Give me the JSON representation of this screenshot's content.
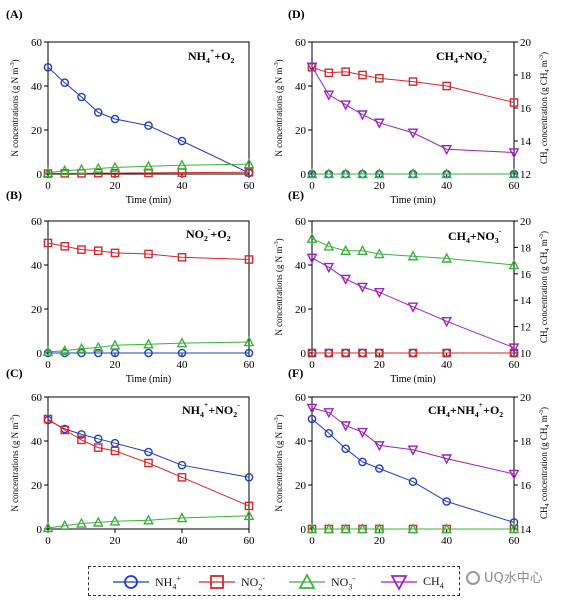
{
  "chart_data": [
    {
      "type": "line",
      "panel_label": "(A)",
      "annotation": {
        "parts": [
          [
            "NH",
            ""
          ],
          [
            "4",
            "sub"
          ],
          [
            "+",
            "sup"
          ],
          [
            "+O",
            ""
          ],
          [
            "2",
            "sub"
          ]
        ]
      },
      "xlabel": "Time (min)",
      "ylabel": "N concentrations (g N m-3)",
      "xlim": [
        0,
        60
      ],
      "ylim": [
        0,
        60
      ],
      "xticks": [
        0,
        20,
        40,
        60
      ],
      "yticks": [
        0,
        20,
        40,
        60
      ],
      "series": [
        {
          "key": "nh4",
          "x": [
            0,
            5,
            10,
            15,
            20,
            30,
            40,
            60
          ],
          "y": [
            48.5,
            41.5,
            35,
            28,
            25,
            22,
            15,
            0.5
          ]
        },
        {
          "key": "no2",
          "x": [
            0,
            5,
            10,
            15,
            20,
            30,
            40,
            60
          ],
          "y": [
            0.2,
            0.3,
            0.3,
            0.4,
            0.4,
            0.5,
            0.6,
            0.8
          ]
        },
        {
          "key": "no3",
          "x": [
            0,
            5,
            10,
            15,
            20,
            30,
            40,
            60
          ],
          "y": [
            0.5,
            1.5,
            2,
            2.5,
            3,
            3.5,
            4,
            4.5
          ]
        }
      ]
    },
    {
      "type": "line",
      "panel_label": "(B)",
      "annotation": {
        "parts": [
          [
            "NO",
            ""
          ],
          [
            "2",
            "sub"
          ],
          [
            "-",
            "sup"
          ],
          [
            "+O",
            ""
          ],
          [
            "2",
            "sub"
          ]
        ]
      },
      "xlabel": "Time (min)",
      "ylabel": "",
      "xlim": [
        0,
        60
      ],
      "ylim": [
        0,
        60
      ],
      "xticks": [
        0,
        20,
        40,
        60
      ],
      "yticks": [
        0,
        20,
        40,
        60
      ],
      "series": [
        {
          "key": "nh4",
          "x": [
            0,
            5,
            10,
            15,
            20,
            30,
            40,
            60
          ],
          "y": [
            0,
            0,
            0,
            0,
            0,
            0,
            0,
            0
          ]
        },
        {
          "key": "no2",
          "x": [
            0,
            5,
            10,
            15,
            20,
            30,
            40,
            60
          ],
          "y": [
            50,
            48.5,
            47,
            46.5,
            45.5,
            45,
            43.5,
            42.5
          ]
        },
        {
          "key": "no3",
          "x": [
            0,
            5,
            10,
            15,
            20,
            30,
            40,
            60
          ],
          "y": [
            0.5,
            1,
            2,
            2.5,
            3.5,
            4,
            4.5,
            5
          ]
        }
      ]
    },
    {
      "type": "line",
      "panel_label": "(C)",
      "annotation": {
        "parts": [
          [
            "NH",
            ""
          ],
          [
            "4",
            "sub"
          ],
          [
            "+",
            "sup"
          ],
          [
            "+NO",
            ""
          ],
          [
            "2",
            "sub"
          ],
          [
            "-",
            "sup"
          ]
        ]
      },
      "xlabel": "",
      "ylabel": "N concentrations (g N m-3)",
      "xlim": [
        0,
        60
      ],
      "ylim": [
        0,
        60
      ],
      "xticks": [
        0,
        20,
        40,
        60
      ],
      "yticks": [
        0,
        20,
        40,
        60
      ],
      "series": [
        {
          "key": "nh4",
          "x": [
            0,
            5,
            10,
            15,
            20,
            30,
            40,
            60
          ],
          "y": [
            49.5,
            45.5,
            43,
            41,
            39,
            35,
            29,
            23.5
          ]
        },
        {
          "key": "no2",
          "x": [
            0,
            5,
            10,
            15,
            20,
            30,
            40,
            60
          ],
          "y": [
            50,
            45,
            40.5,
            37,
            35.5,
            30,
            23.5,
            10.5
          ]
        },
        {
          "key": "no3",
          "x": [
            0,
            5,
            10,
            15,
            20,
            30,
            40,
            60
          ],
          "y": [
            0.5,
            1.5,
            2.5,
            3,
            3.5,
            4,
            5,
            6
          ]
        }
      ]
    },
    {
      "type": "line",
      "panel_label": "(D)",
      "annotation": {
        "parts": [
          [
            "CH",
            ""
          ],
          [
            "4",
            "sub"
          ],
          [
            "+NO",
            ""
          ],
          [
            "2",
            "sub"
          ],
          [
            "-",
            "sup"
          ]
        ]
      },
      "xlabel": "Time (min)",
      "ylabel": "N concentrations (g N m-3)",
      "ylabel_right": "CH4 concentration (g CH4 m-3)",
      "xlim": [
        0,
        60
      ],
      "ylim": [
        0,
        60
      ],
      "ylim_right": [
        12,
        20
      ],
      "xticks": [
        0,
        20,
        40,
        60
      ],
      "yticks": [
        0,
        20,
        40,
        60
      ],
      "yticks_right": [
        12,
        14,
        16,
        18,
        20
      ],
      "series": [
        {
          "key": "nh4",
          "x": [
            0,
            5,
            10,
            15,
            20,
            30,
            40,
            60
          ],
          "y": [
            0,
            0,
            0,
            0,
            0,
            0,
            0,
            0
          ]
        },
        {
          "key": "no2",
          "x": [
            0,
            5,
            10,
            15,
            20,
            30,
            40,
            60
          ],
          "y": [
            48.5,
            46,
            46.5,
            45,
            43.5,
            42,
            40,
            32.5
          ]
        },
        {
          "key": "no3",
          "x": [
            0,
            5,
            10,
            15,
            20,
            30,
            40,
            60
          ],
          "y": [
            0,
            0,
            0,
            0,
            0,
            0,
            0,
            0
          ]
        },
        {
          "key": "ch4",
          "axis": "right",
          "x": [
            0,
            5,
            10,
            15,
            20,
            30,
            40,
            60
          ],
          "y": [
            18.5,
            16.8,
            16.2,
            15.6,
            15.1,
            14.5,
            13.5,
            13.3
          ]
        }
      ]
    },
    {
      "type": "line",
      "panel_label": "(E)",
      "annotation": {
        "parts": [
          [
            "CH",
            ""
          ],
          [
            "4",
            "sub"
          ],
          [
            "+NO",
            ""
          ],
          [
            "3",
            "sub"
          ],
          [
            "-",
            "sup"
          ]
        ]
      },
      "xlabel": "Time (min)",
      "ylabel": "N concentrations (g N m-3)",
      "ylabel_right": "CH4 concentration (g CH4 m-3)",
      "xlim": [
        0,
        60
      ],
      "ylim": [
        0,
        60
      ],
      "ylim_right": [
        10,
        20
      ],
      "xticks": [
        0,
        20,
        40,
        60
      ],
      "yticks": [
        0,
        20,
        40,
        60
      ],
      "yticks_right": [
        10,
        12,
        14,
        16,
        18,
        20
      ],
      "series": [
        {
          "key": "nh4",
          "x": [
            0,
            5,
            10,
            15,
            20,
            30,
            40,
            60
          ],
          "y": [
            0,
            0,
            0,
            0,
            0,
            0,
            0,
            0
          ]
        },
        {
          "key": "no2",
          "x": [
            0,
            5,
            10,
            15,
            20,
            30,
            40,
            60
          ],
          "y": [
            0,
            0,
            0,
            0,
            0,
            0,
            0,
            0
          ]
        },
        {
          "key": "no3",
          "x": [
            0,
            5,
            10,
            15,
            20,
            30,
            40,
            60
          ],
          "y": [
            52,
            48.5,
            46.5,
            46.5,
            45,
            44,
            43,
            40
          ]
        },
        {
          "key": "ch4",
          "axis": "right",
          "x": [
            0,
            5,
            10,
            15,
            20,
            30,
            40,
            60
          ],
          "y": [
            17.2,
            16.5,
            15.6,
            15,
            14.6,
            13.5,
            12.4,
            10.4
          ]
        }
      ]
    },
    {
      "type": "line",
      "panel_label": "(F)",
      "annotation": {
        "parts": [
          [
            "CH",
            ""
          ],
          [
            "4",
            "sub"
          ],
          [
            "+NH",
            ""
          ],
          [
            "4",
            "sub"
          ],
          [
            "+",
            "sup"
          ],
          [
            "+O",
            ""
          ],
          [
            "2",
            "sub"
          ]
        ]
      },
      "xlabel": "",
      "ylabel": "N concentrations (g N m-3)",
      "ylabel_right": "CH4 concentration (g CH4 m-3)",
      "xlim": [
        0,
        60
      ],
      "ylim": [
        0,
        60
      ],
      "ylim_right": [
        14,
        20
      ],
      "xticks": [
        0,
        20,
        40,
        60
      ],
      "yticks": [
        0,
        20,
        40,
        60
      ],
      "yticks_right": [
        14,
        16,
        18,
        20
      ],
      "series": [
        {
          "key": "nh4",
          "x": [
            0,
            5,
            10,
            15,
            20,
            30,
            40,
            60
          ],
          "y": [
            50,
            43.5,
            36.5,
            30.5,
            27.5,
            21.5,
            12.5,
            3
          ]
        },
        {
          "key": "no2",
          "x": [
            0,
            5,
            10,
            15,
            20,
            30,
            40,
            60
          ],
          "y": [
            0,
            0,
            0,
            0,
            0,
            0,
            0,
            0
          ]
        },
        {
          "key": "no3",
          "x": [
            0,
            5,
            10,
            15,
            20,
            30,
            40,
            60
          ],
          "y": [
            0,
            0,
            0,
            0,
            0,
            0,
            0,
            0
          ]
        },
        {
          "key": "ch4",
          "axis": "right",
          "x": [
            0,
            5,
            10,
            15,
            20,
            30,
            40,
            60
          ],
          "y": [
            19.5,
            19.3,
            18.7,
            18.4,
            17.8,
            17.6,
            17.2,
            16.5
          ]
        }
      ]
    }
  ],
  "styles": {
    "nh4": {
      "color": "#1f3fbf",
      "marker": "circle"
    },
    "no2": {
      "color": "#d42a2a",
      "marker": "square"
    },
    "no3": {
      "color": "#3bb33b",
      "marker": "triangle"
    },
    "ch4": {
      "color": "#a020c0",
      "marker": "triangle-down"
    }
  },
  "legend": {
    "position": "bottom",
    "items": [
      {
        "key": "nh4",
        "text": "NH",
        "sub": "",
        "sup": "+",
        "sub2": "4"
      },
      {
        "key": "no2",
        "text": "NO",
        "sub": "",
        "sup": "-",
        "sub2": "2"
      },
      {
        "key": "no3",
        "text": "NO",
        "sub": "",
        "sup": "-",
        "sub2": "3"
      },
      {
        "key": "ch4",
        "text": "CH",
        "sub": "4",
        "sup": "",
        "sub2": ""
      }
    ]
  },
  "watermark": "UQ水中心"
}
